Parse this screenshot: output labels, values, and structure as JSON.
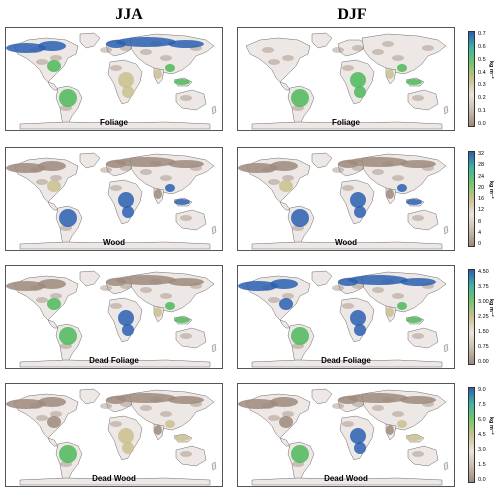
{
  "columns": [
    "JJA",
    "DJF"
  ],
  "rows": [
    {
      "label": "Foliage",
      "unit": "kg m⁻²",
      "ticks": [
        "0.7",
        "0.6",
        "0.5",
        "0.4",
        "0.3",
        "0.2",
        "0.1",
        "0.0"
      ]
    },
    {
      "label": "Wood",
      "unit": "kg m⁻²",
      "ticks": [
        "32",
        "28",
        "24",
        "20",
        "16",
        "12",
        "8",
        "4",
        "0"
      ]
    },
    {
      "label": "Dead Foliage",
      "unit": "kg m⁻²",
      "ticks": [
        "4.50",
        "3.75",
        "3.00",
        "2.25",
        "1.50",
        "0.75",
        "0.00"
      ]
    },
    {
      "label": "Dead Wood",
      "unit": "kg m⁻²",
      "ticks": [
        "9.0",
        "7.5",
        "6.0",
        "4.5",
        "3.0",
        "1.5",
        "0.0"
      ]
    }
  ],
  "colors": {
    "land": "#ede8e6",
    "coast": "#6b6b6b",
    "low": "#9e8a7c",
    "mid": "#c9c08e",
    "green": "#4cb95a",
    "high": "#2a5fb0"
  },
  "colorbar_stops": [
    "#9e8a7c",
    "#c8bcae",
    "#e9e4dc",
    "#c9c08e",
    "#74c66a",
    "#3fb4a4",
    "#2a5fb0"
  ],
  "patterns": {
    "Foliage": {
      "JJA": {
        "boreal": "high",
        "amazon": "green",
        "congo": "mid",
        "seasia": "green",
        "eastus": "green",
        "india": "mid"
      },
      "DJF": {
        "boreal": "none",
        "amazon": "green",
        "congo": "green",
        "seasia": "green",
        "eastus": "none",
        "india": "mid"
      }
    },
    "Wood": {
      "JJA": {
        "boreal": "low",
        "amazon": "high",
        "congo": "high",
        "seasia": "high",
        "eastus": "mid",
        "india": "low"
      },
      "DJF": {
        "boreal": "low",
        "amazon": "high",
        "congo": "high",
        "seasia": "high",
        "eastus": "mid",
        "india": "low"
      }
    },
    "Dead Foliage": {
      "JJA": {
        "boreal": "low",
        "amazon": "green",
        "congo": "high",
        "seasia": "green",
        "eastus": "green",
        "india": "mid"
      },
      "DJF": {
        "boreal": "high",
        "amazon": "green",
        "congo": "high",
        "seasia": "green",
        "eastus": "high",
        "india": "mid"
      }
    },
    "Dead Wood": {
      "JJA": {
        "boreal": "low",
        "amazon": "green",
        "congo": "mid",
        "seasia": "mid",
        "eastus": "low",
        "india": "low"
      },
      "DJF": {
        "boreal": "low",
        "amazon": "green",
        "congo": "high",
        "seasia": "mid",
        "eastus": "low",
        "india": "low"
      }
    }
  }
}
